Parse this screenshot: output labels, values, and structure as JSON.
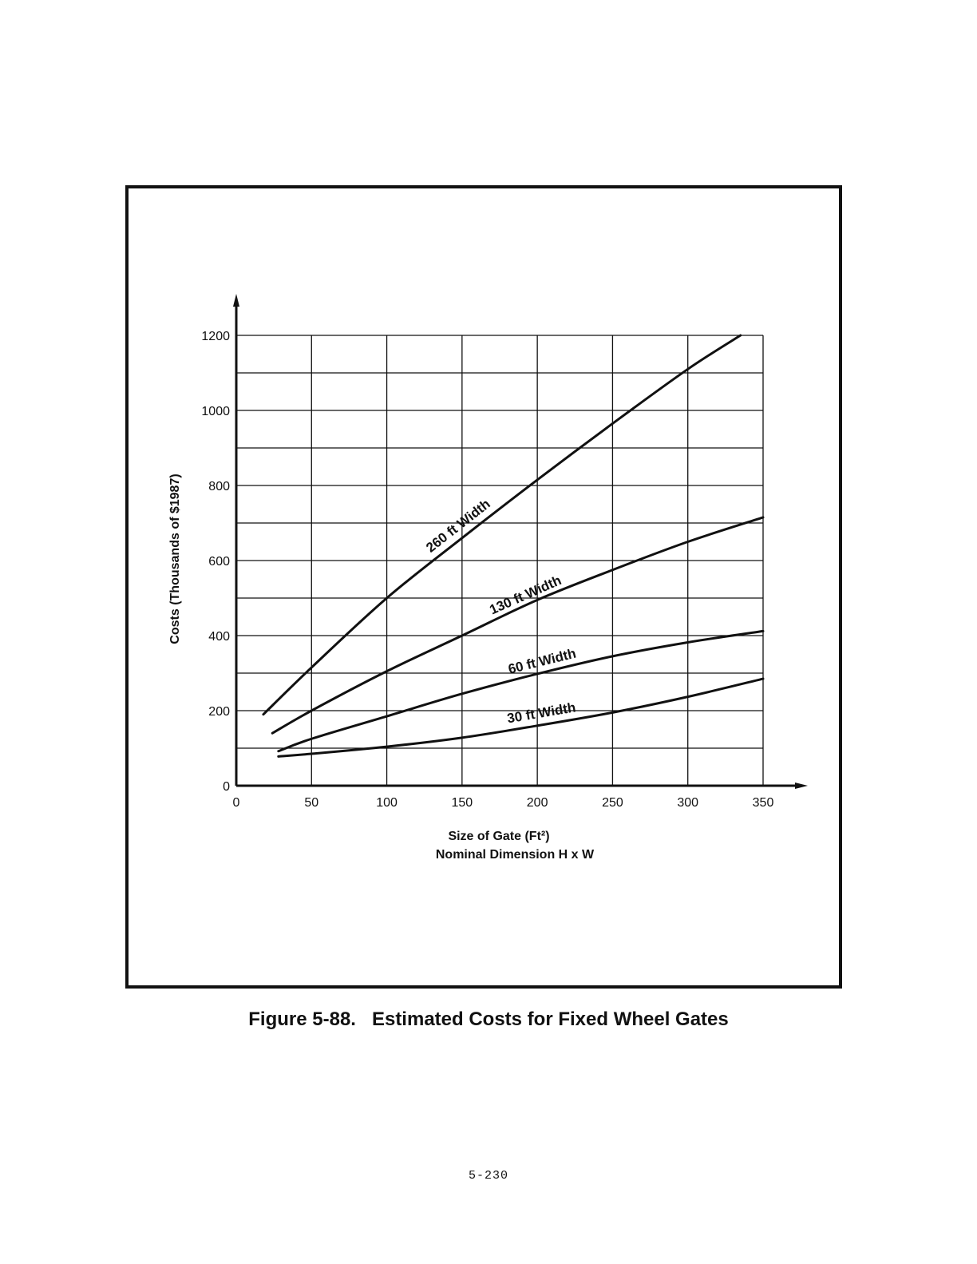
{
  "caption": "Figure 5-88.   Estimated Costs for Fixed Wheel Gates",
  "page_number": "5-230",
  "chart_data": {
    "type": "line",
    "title": "",
    "xlabel": "Size of Gate (Ft²)",
    "xlabel2": "Nominal Dimension H x W",
    "ylabel": "Costs (Thousands of $1987)",
    "xlim": [
      0,
      350
    ],
    "ylim": [
      0,
      1200
    ],
    "x_ticks": [
      0,
      50,
      100,
      150,
      200,
      250,
      300,
      350
    ],
    "y_ticks": [
      0,
      200,
      400,
      600,
      800,
      1000,
      1200
    ],
    "x_tick_labels": [
      "0",
      "50",
      "100",
      "150",
      "200",
      "250",
      "300",
      "350"
    ],
    "y_tick_labels": [
      "0",
      "200",
      "400",
      "600",
      "800",
      "1000",
      "1200"
    ],
    "grid": true,
    "legend": "inline labels on curves",
    "line_color": "#111111",
    "series": [
      {
        "name": "260 ft Width",
        "x": [
          18,
          50,
          100,
          150,
          200,
          250,
          300,
          335
        ],
        "y": [
          190,
          315,
          500,
          660,
          815,
          965,
          1110,
          1200
        ]
      },
      {
        "name": "130 ft Width",
        "x": [
          24,
          50,
          100,
          150,
          200,
          250,
          300,
          350
        ],
        "y": [
          140,
          200,
          305,
          400,
          495,
          575,
          650,
          715
        ]
      },
      {
        "name": "60 ft Width",
        "x": [
          28,
          50,
          100,
          150,
          200,
          250,
          300,
          350
        ],
        "y": [
          92,
          125,
          185,
          245,
          298,
          345,
          382,
          412
        ]
      },
      {
        "name": "30 ft Width",
        "x": [
          28,
          50,
          100,
          150,
          200,
          250,
          300,
          350
        ],
        "y": [
          78,
          85,
          104,
          128,
          160,
          195,
          237,
          285
        ]
      }
    ]
  }
}
